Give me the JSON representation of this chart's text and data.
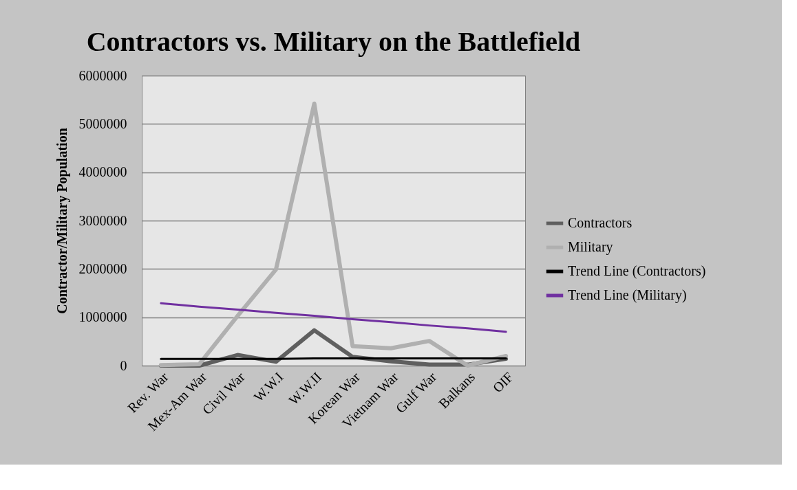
{
  "chart_data": {
    "type": "line",
    "title": "Contractors vs. Military on the Battlefield",
    "ylabel": "Contractor/Military Population",
    "categories": [
      "Rev. War",
      "Mex-Am War",
      "Civil War",
      "W.W.I",
      "W.W.II",
      "Korean War",
      "Vietnam War",
      "Gulf War",
      "Balkans",
      "OIF"
    ],
    "series": [
      {
        "name": "Contractors",
        "color": "#5f5f5f",
        "values": [
          0,
          0,
          220000,
          80000,
          730000,
          180000,
          90000,
          20000,
          20000,
          140000
        ]
      },
      {
        "name": "Military",
        "color": "#b0b0b0",
        "values": [
          10000,
          30000,
          1030000,
          1990000,
          5420000,
          400000,
          360000,
          510000,
          0,
          200000
        ]
      },
      {
        "name": "Trend Line (Contractors)",
        "color": "#000000",
        "values": [
          140000,
          140000,
          140000,
          140000,
          150000,
          150000,
          150000,
          150000,
          150000,
          150000
        ]
      },
      {
        "name": "Trend Line (Military)",
        "color": "#7030a0",
        "values": [
          1290000,
          1220000,
          1160000,
          1090000,
          1030000,
          960000,
          900000,
          830000,
          770000,
          700000
        ]
      }
    ],
    "ylim": [
      0,
      6000000
    ],
    "yticks": [
      0,
      1000000,
      2000000,
      3000000,
      4000000,
      5000000,
      6000000
    ],
    "grid": "y",
    "legend": "right",
    "marker": "none",
    "line_style": "solid"
  }
}
